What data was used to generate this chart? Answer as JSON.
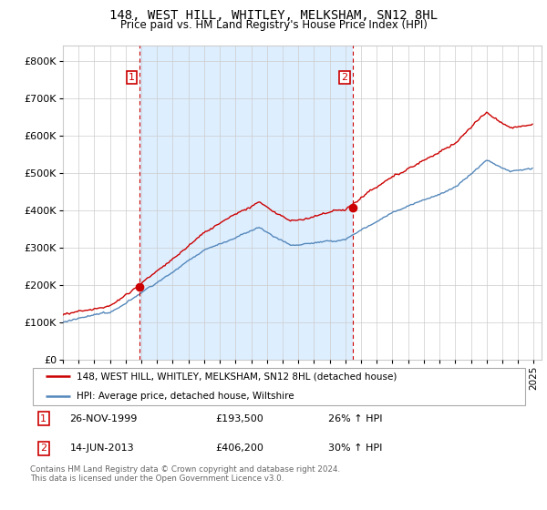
{
  "title": "148, WEST HILL, WHITLEY, MELKSHAM, SN12 8HL",
  "subtitle": "Price paid vs. HM Land Registry's House Price Index (HPI)",
  "ylabel_ticks": [
    "£0",
    "£100K",
    "£200K",
    "£300K",
    "£400K",
    "£500K",
    "£600K",
    "£700K",
    "£800K"
  ],
  "ytick_values": [
    0,
    100000,
    200000,
    300000,
    400000,
    500000,
    600000,
    700000,
    800000
  ],
  "ylim": [
    0,
    840000
  ],
  "xlim_start": 1995.0,
  "xlim_end": 2025.5,
  "sale1_x": 1999.9,
  "sale1_y": 193500,
  "sale2_x": 2013.45,
  "sale2_y": 406200,
  "legend_line1": "148, WEST HILL, WHITLEY, MELKSHAM, SN12 8HL (detached house)",
  "legend_line2": "HPI: Average price, detached house, Wiltshire",
  "table_row1": [
    "1",
    "26-NOV-1999",
    "£193,500",
    "26% ↑ HPI"
  ],
  "table_row2": [
    "2",
    "14-JUN-2013",
    "£406,200",
    "30% ↑ HPI"
  ],
  "footer": "Contains HM Land Registry data © Crown copyright and database right 2024.\nThis data is licensed under the Open Government Licence v3.0.",
  "red_color": "#cc0000",
  "blue_color": "#5588bb",
  "shade_color": "#ddeeff",
  "grid_color": "#cccccc",
  "title_fontsize": 10,
  "subtitle_fontsize": 8.5
}
